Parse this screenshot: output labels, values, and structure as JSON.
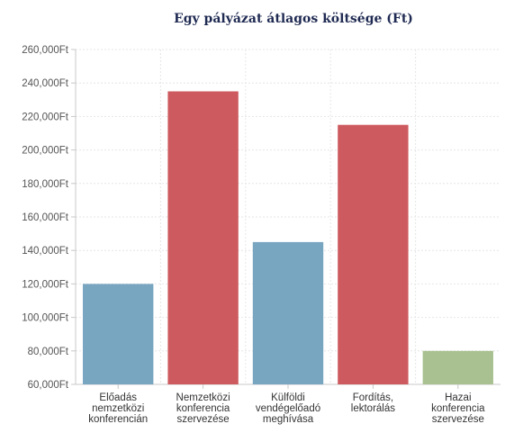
{
  "chart_data": {
    "type": "bar",
    "title": "Egy pályázat átlagos költsége (Ft)",
    "xlabel": "",
    "ylabel": "",
    "ylim": [
      60000,
      260000
    ],
    "yticks": [
      "60,000Ft",
      "80,000Ft",
      "100,000Ft",
      "120,000Ft",
      "140,000Ft",
      "160,000Ft",
      "180,000Ft",
      "200,000Ft",
      "220,000Ft",
      "240,000Ft",
      "260,000Ft"
    ],
    "categories": [
      [
        "Előadás",
        "nemzetközi",
        "konferencián"
      ],
      [
        "Nemzetközi",
        "konferencia",
        "szervezése"
      ],
      [
        "Külföldi",
        "vendégelőadó",
        "meghívása"
      ],
      [
        "Fordítás,",
        "lektorálás"
      ],
      [
        "Hazai",
        "konferencia",
        "szervezése"
      ]
    ],
    "values": [
      120000,
      235000,
      145000,
      215000,
      80000
    ],
    "colors": [
      "#78a5c0",
      "#cc5a5e",
      "#78a5c0",
      "#cc5a5e",
      "#a9c190"
    ],
    "grid": true
  }
}
